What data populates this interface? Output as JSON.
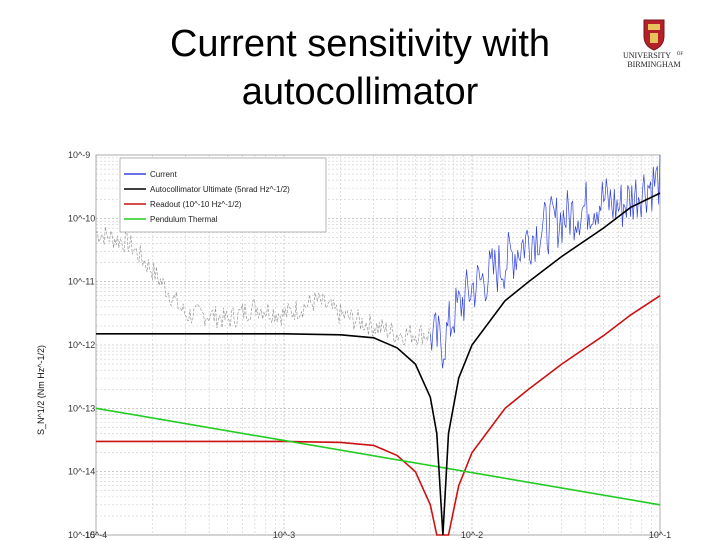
{
  "slide": {
    "title_line1": "Current sensitivity with",
    "title_line2": "autocollimator",
    "logo_text_line1": "UNIVERSITY",
    "logo_text_of": "OF",
    "logo_text_line2": "BIRMINGHAM"
  },
  "chart_data": {
    "type": "line",
    "title": "",
    "xlabel": "",
    "ylabel": "S_N^1/2 (Nm Hz^-1/2)",
    "xscale": "log",
    "yscale": "log",
    "xlim": [
      0.0001,
      0.1
    ],
    "ylim": [
      1e-15,
      1e-09
    ],
    "grid": true,
    "legend_position": "top-left",
    "y_tick_labels": [
      "10^-9",
      "10^-10",
      "10^-11",
      "10^-12",
      "10^-13",
      "10^-14",
      "10^-15"
    ],
    "x_tick_labels": [
      "10^-4",
      "10^-3",
      "10^-2",
      "10^-1"
    ],
    "series": [
      {
        "name": "Current",
        "color": "#3344dd",
        "color_low_freq": "#999999",
        "x": [
          0.0001,
          0.00015,
          0.0002,
          0.0003,
          0.0004,
          0.0005,
          0.0007,
          0.001,
          0.0015,
          0.002,
          0.003,
          0.004,
          0.005,
          0.006,
          0.007,
          0.008,
          0.01,
          0.015,
          0.02,
          0.03,
          0.04,
          0.05,
          0.06,
          0.07,
          0.08,
          0.1
        ],
        "y": [
          6e-11,
          4e-11,
          1.5e-11,
          3e-12,
          3e-12,
          2.5e-12,
          4e-12,
          3e-12,
          5e-12,
          3e-12,
          2e-12,
          1.5e-12,
          1.5e-12,
          1.5e-12,
          1e-12,
          3e-12,
          8e-12,
          2e-11,
          5e-11,
          1e-10,
          1.5e-10,
          2e-10,
          1.5e-10,
          2e-10,
          3e-10,
          4e-10
        ]
      },
      {
        "name": "Autocollimator Ultimate (5nrad Hz^-1/2)",
        "color": "#000000",
        "x": [
          0.0001,
          0.001,
          0.002,
          0.003,
          0.004,
          0.005,
          0.006,
          0.0065,
          0.007,
          0.0075,
          0.0085,
          0.01,
          0.015,
          0.02,
          0.03,
          0.05,
          0.07,
          0.1
        ],
        "y": [
          1.5e-12,
          1.5e-12,
          1.45e-12,
          1.3e-12,
          9e-13,
          5e-13,
          1.5e-13,
          4e-14,
          1e-15,
          4e-14,
          3e-13,
          1e-12,
          5e-12,
          1e-11,
          2.5e-11,
          7e-11,
          1.5e-10,
          2.5e-10
        ]
      },
      {
        "name": "Readout (10^-10 Hz^-1/2)",
        "color": "#cc1111",
        "x": [
          0.0001,
          0.001,
          0.002,
          0.003,
          0.004,
          0.005,
          0.006,
          0.0065,
          0.007,
          0.0075,
          0.0085,
          0.01,
          0.015,
          0.02,
          0.03,
          0.05,
          0.07,
          0.1
        ],
        "y": [
          3e-14,
          3e-14,
          2.9e-14,
          2.6e-14,
          1.8e-14,
          1e-14,
          3e-15,
          8e-16,
          1e-15,
          8e-16,
          6e-15,
          2e-14,
          1e-13,
          2e-13,
          5e-13,
          1.4e-12,
          3e-12,
          6e-12
        ]
      },
      {
        "name": "Pendulum Thermal",
        "color": "#22cc22",
        "x": [
          0.0001,
          0.1
        ],
        "y": [
          1e-13,
          3e-15
        ]
      }
    ]
  }
}
